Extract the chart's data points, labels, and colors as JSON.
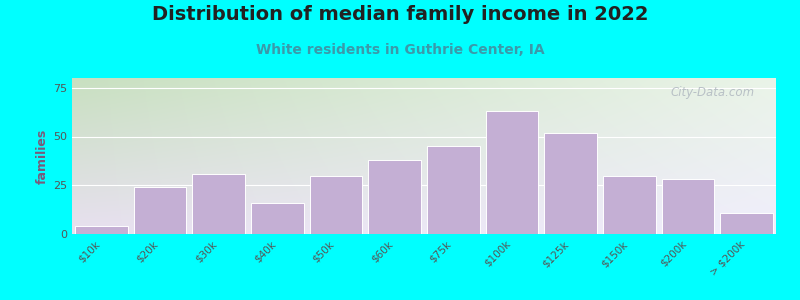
{
  "title": "Distribution of median family income in 2022",
  "subtitle": "White residents in Guthrie Center, IA",
  "ylabel": "families",
  "categories": [
    "$10k",
    "$20k",
    "$30k",
    "$40k",
    "$50k",
    "$60k",
    "$75k",
    "$100k",
    "$125k",
    "$150k",
    "$200k",
    "> $200k"
  ],
  "values": [
    4,
    24,
    31,
    16,
    30,
    38,
    45,
    63,
    52,
    30,
    28,
    11
  ],
  "bar_color": "#c4afd4",
  "bar_edge_color": "#ffffff",
  "ylim": [
    0,
    80
  ],
  "yticks": [
    0,
    25,
    50,
    75
  ],
  "background_color": "#00ffff",
  "plot_bg_left_top": "#c8e0c0",
  "plot_bg_right_top": "#eaf4e8",
  "plot_bg_left_bottom": "#e8e0f0",
  "plot_bg_right_bottom": "#f0eefc",
  "title_fontsize": 14,
  "subtitle_fontsize": 10,
  "ylabel_fontsize": 9,
  "title_color": "#222222",
  "subtitle_color": "#3a9aaa",
  "ylabel_color": "#7a5a7a",
  "tick_color": "#555555",
  "watermark_text": "City-Data.com",
  "grid_color": "#ffffff",
  "bar_positions": [
    0,
    1,
    2,
    3,
    4,
    5,
    6,
    7,
    8,
    9,
    10,
    11
  ],
  "bar_widths": [
    0.9,
    0.9,
    0.9,
    0.9,
    0.9,
    0.9,
    0.9,
    0.9,
    0.9,
    0.9,
    0.9,
    0.9
  ]
}
